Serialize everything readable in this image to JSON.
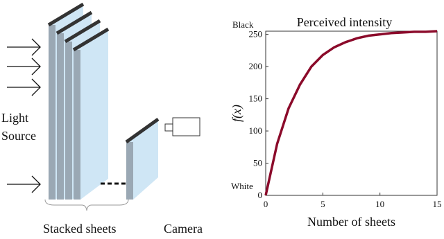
{
  "diagram": {
    "light_source": [
      "Light",
      "Source"
    ],
    "stacked_sheets": "Stacked sheets",
    "camera": "Camera"
  },
  "chart_data": {
    "type": "line",
    "title": "Perceived intensity",
    "x_label": "Number of sheets",
    "y_label": "f(x)",
    "annotations": {
      "top": "Black",
      "bottom": "White"
    },
    "x": [
      0,
      1,
      2,
      3,
      4,
      5,
      6,
      7,
      8,
      9,
      10,
      11,
      12,
      13,
      14,
      15
    ],
    "series": [
      {
        "color": "#8b0a2a",
        "values": [
          0,
          80,
          135,
          172,
          200,
          218,
          230,
          238,
          244,
          248,
          250,
          252,
          253,
          254,
          254,
          255
        ]
      }
    ],
    "xlim": [
      0,
      15
    ],
    "ylim": [
      0,
      255
    ],
    "xticks": [
      0,
      5,
      10,
      15
    ],
    "yticks": [
      0,
      50,
      100,
      150,
      200,
      250
    ]
  }
}
